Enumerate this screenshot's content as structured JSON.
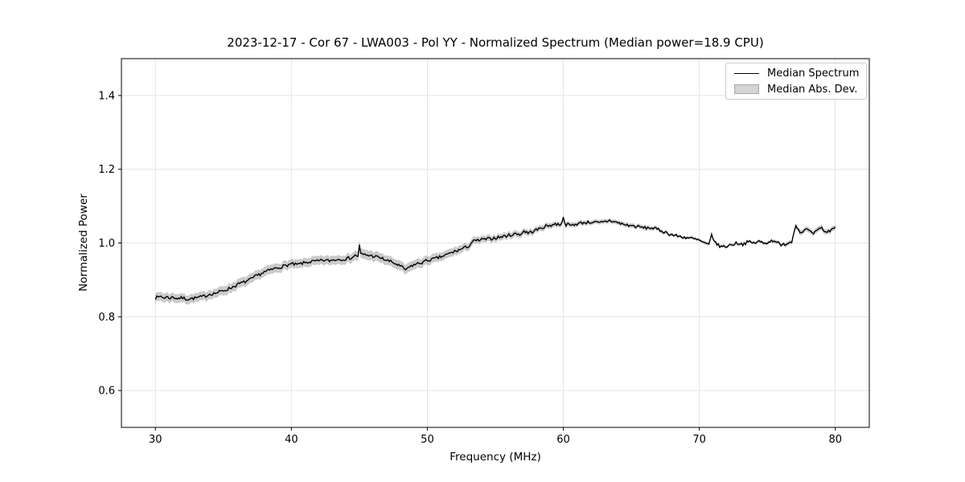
{
  "chart_data": {
    "type": "line",
    "title": "2023-12-17 - Cor 67 - LWA003 - Pol YY - Normalized Spectrum (Median power=18.9 CPU)",
    "xlabel": "Frequency (MHz)",
    "ylabel": "Normalized Power",
    "xlim": [
      27.5,
      82.5
    ],
    "ylim": [
      0.5,
      1.5
    ],
    "x_ticks": [
      30,
      40,
      50,
      60,
      70,
      80
    ],
    "y_ticks": [
      0.6,
      0.8,
      1.0,
      1.2,
      1.4
    ],
    "grid": true,
    "legend": {
      "position": "upper right",
      "entries": [
        {
          "label": "Median Spectrum",
          "type": "line",
          "color": "#000000"
        },
        {
          "label": "Median Abs. Dev.",
          "type": "patch",
          "color": "#d4d4d4"
        }
      ]
    },
    "series": [
      {
        "name": "Median Spectrum",
        "anchors": [
          [
            30.0,
            0.851
          ],
          [
            30.1,
            0.86
          ],
          [
            30.2,
            0.85
          ],
          [
            30.4,
            0.856
          ],
          [
            30.6,
            0.851
          ],
          [
            30.8,
            0.854
          ],
          [
            31.0,
            0.851
          ],
          [
            31.3,
            0.853
          ],
          [
            31.6,
            0.85
          ],
          [
            32.0,
            0.851
          ],
          [
            32.3,
            0.848
          ],
          [
            32.6,
            0.849
          ],
          [
            33.0,
            0.851
          ],
          [
            33.4,
            0.854
          ],
          [
            33.8,
            0.858
          ],
          [
            34.0,
            0.862
          ],
          [
            34.3,
            0.863
          ],
          [
            34.6,
            0.866
          ],
          [
            35.0,
            0.871
          ],
          [
            35.4,
            0.876
          ],
          [
            35.8,
            0.883
          ],
          [
            36.2,
            0.89
          ],
          [
            36.6,
            0.895
          ],
          [
            37.0,
            0.901
          ],
          [
            37.3,
            0.908
          ],
          [
            37.6,
            0.914
          ],
          [
            38.0,
            0.921
          ],
          [
            38.4,
            0.926
          ],
          [
            38.8,
            0.931
          ],
          [
            39.2,
            0.935
          ],
          [
            39.6,
            0.939
          ],
          [
            40.0,
            0.943
          ],
          [
            40.4,
            0.941
          ],
          [
            40.8,
            0.945
          ],
          [
            41.2,
            0.948
          ],
          [
            41.6,
            0.95
          ],
          [
            42.0,
            0.951
          ],
          [
            42.4,
            0.953
          ],
          [
            42.8,
            0.952
          ],
          [
            43.2,
            0.955
          ],
          [
            43.6,
            0.956
          ],
          [
            44.0,
            0.957
          ],
          [
            44.4,
            0.96
          ],
          [
            44.7,
            0.966
          ],
          [
            44.9,
            0.965
          ],
          [
            45.0,
            0.993
          ],
          [
            45.1,
            0.97
          ],
          [
            45.4,
            0.968
          ],
          [
            45.8,
            0.966
          ],
          [
            46.2,
            0.963
          ],
          [
            46.6,
            0.959
          ],
          [
            47.0,
            0.953
          ],
          [
            47.4,
            0.948
          ],
          [
            47.8,
            0.941
          ],
          [
            48.1,
            0.935
          ],
          [
            48.4,
            0.928
          ],
          [
            48.6,
            0.931
          ],
          [
            48.8,
            0.938
          ],
          [
            49.2,
            0.943
          ],
          [
            49.6,
            0.947
          ],
          [
            50.0,
            0.953
          ],
          [
            50.4,
            0.956
          ],
          [
            50.8,
            0.96
          ],
          [
            51.2,
            0.965
          ],
          [
            51.6,
            0.971
          ],
          [
            52.0,
            0.977
          ],
          [
            52.4,
            0.982
          ],
          [
            52.8,
            0.988
          ],
          [
            53.1,
            0.993
          ],
          [
            53.3,
            1.004
          ],
          [
            53.6,
            1.006
          ],
          [
            54.0,
            1.009
          ],
          [
            54.5,
            1.011
          ],
          [
            55.0,
            1.014
          ],
          [
            55.5,
            1.017
          ],
          [
            56.0,
            1.021
          ],
          [
            56.5,
            1.025
          ],
          [
            56.9,
            1.024
          ],
          [
            57.1,
            1.033
          ],
          [
            57.4,
            1.027
          ],
          [
            57.8,
            1.032
          ],
          [
            58.2,
            1.038
          ],
          [
            58.6,
            1.044
          ],
          [
            59.0,
            1.048
          ],
          [
            59.4,
            1.051
          ],
          [
            59.8,
            1.051
          ],
          [
            60.0,
            1.067
          ],
          [
            60.2,
            1.05
          ],
          [
            60.6,
            1.048
          ],
          [
            61.0,
            1.052
          ],
          [
            61.4,
            1.055
          ],
          [
            61.8,
            1.056
          ],
          [
            62.2,
            1.057
          ],
          [
            62.6,
            1.054
          ],
          [
            63.0,
            1.057
          ],
          [
            63.4,
            1.061
          ],
          [
            63.8,
            1.057
          ],
          [
            64.2,
            1.053
          ],
          [
            64.6,
            1.049
          ],
          [
            65.0,
            1.047
          ],
          [
            65.5,
            1.044
          ],
          [
            66.0,
            1.041
          ],
          [
            66.5,
            1.041
          ],
          [
            67.0,
            1.036
          ],
          [
            67.5,
            1.029
          ],
          [
            68.0,
            1.022
          ],
          [
            68.5,
            1.018
          ],
          [
            69.0,
            1.015
          ],
          [
            69.5,
            1.012
          ],
          [
            70.0,
            1.007
          ],
          [
            70.4,
            0.999
          ],
          [
            70.7,
            0.994
          ],
          [
            70.9,
            1.023
          ],
          [
            71.2,
            0.999
          ],
          [
            71.6,
            0.99
          ],
          [
            72.0,
            0.991
          ],
          [
            72.4,
            0.996
          ],
          [
            72.8,
            1.0
          ],
          [
            73.2,
            0.997
          ],
          [
            73.6,
            1.003
          ],
          [
            74.0,
            1.0
          ],
          [
            74.4,
            1.004
          ],
          [
            74.8,
            0.999
          ],
          [
            75.2,
            1.005
          ],
          [
            75.6,
            1.007
          ],
          [
            76.0,
            0.992
          ],
          [
            76.4,
            0.999
          ],
          [
            76.8,
            1.004
          ],
          [
            77.1,
            1.051
          ],
          [
            77.4,
            1.028
          ],
          [
            77.7,
            1.035
          ],
          [
            78.0,
            1.036
          ],
          [
            78.3,
            1.024
          ],
          [
            78.6,
            1.031
          ],
          [
            79.0,
            1.041
          ],
          [
            79.3,
            1.028
          ],
          [
            79.6,
            1.034
          ],
          [
            80.0,
            1.044
          ]
        ]
      }
    ],
    "band": {
      "name": "Median Abs. Dev.",
      "half_width_anchors": [
        [
          30,
          0.012
        ],
        [
          34,
          0.012
        ],
        [
          37,
          0.013
        ],
        [
          40,
          0.012
        ],
        [
          44,
          0.012
        ],
        [
          45,
          0.013
        ],
        [
          48,
          0.013
        ],
        [
          50,
          0.012
        ],
        [
          52,
          0.011
        ],
        [
          54,
          0.009
        ],
        [
          56,
          0.009
        ],
        [
          58,
          0.008
        ],
        [
          60,
          0.007
        ],
        [
          62,
          0.006
        ],
        [
          64,
          0.006
        ],
        [
          66,
          0.006
        ],
        [
          68,
          0.004
        ],
        [
          70,
          0.004
        ],
        [
          72,
          0.004
        ],
        [
          74,
          0.004
        ],
        [
          76,
          0.005
        ],
        [
          77,
          0.006
        ],
        [
          78,
          0.007
        ],
        [
          80,
          0.007
        ]
      ]
    },
    "noise": {
      "seed": 7,
      "amplitude": 0.0042,
      "step_mhz": 0.1
    },
    "colors": {
      "line": "#000000",
      "band": "rgba(128,128,128,0.42)",
      "grid": "#e4e4e4",
      "spine": "#000000",
      "tick_label": "#000000"
    }
  }
}
